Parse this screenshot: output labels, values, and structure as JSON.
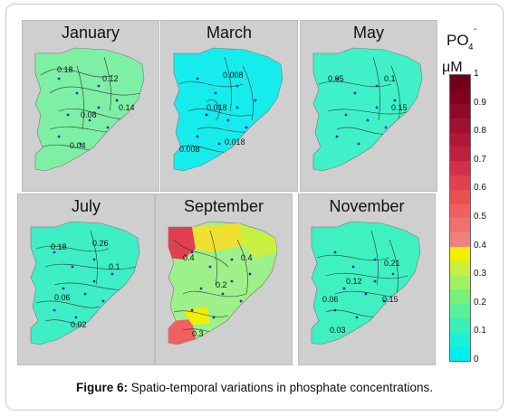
{
  "figure": {
    "caption_label": "Figure 6:",
    "caption_text": " Spatio-temporal variations in phosphate concentrations."
  },
  "panels": [
    {
      "id": "january",
      "title": "January",
      "contour_labels": [
        "0.18",
        "0.12",
        "0.08",
        "0.14",
        "0.04"
      ],
      "fill": "#7ef0a6"
    },
    {
      "id": "march",
      "title": "March",
      "contour_labels": [
        "0.008",
        "0.018",
        "0.018",
        "0.008"
      ],
      "fill": "#16ecec"
    },
    {
      "id": "may",
      "title": "May",
      "contour_labels": [
        "0.05",
        "0.1",
        "0.15"
      ],
      "fill": "#3ff0c8"
    },
    {
      "id": "july",
      "title": "July",
      "contour_labels": [
        "0.18",
        "0.26",
        "0.1",
        "0.06",
        "0.02"
      ],
      "fill": "#3eeec4"
    },
    {
      "id": "september",
      "title": "September",
      "contour_labels": [
        "0.4",
        "0.4",
        "0.2",
        "0.3"
      ],
      "fill": "#9ef08a"
    },
    {
      "id": "november",
      "title": "November",
      "contour_labels": [
        "0.21",
        "0.12",
        "0.06",
        "0.15",
        "0.03"
      ],
      "fill": "#3ff0c0"
    }
  ],
  "legend": {
    "title": "PO",
    "subscript": "4",
    "superscript": "-",
    "unit": "μM",
    "ticks": [
      "1",
      "0.9",
      "0.8",
      "0.7",
      "0.6",
      "0.5",
      "0.4",
      "0.3",
      "0.2",
      "0.1",
      "0"
    ],
    "min": 0,
    "max": 1,
    "step_colors": [
      "#00f0f0",
      "#18f0d8",
      "#38f0b8",
      "#58f098",
      "#78f078",
      "#a0f060",
      "#c8f040",
      "#f0f000",
      "#f08080",
      "#f07070",
      "#f06060",
      "#e85050",
      "#e04050",
      "#d03048",
      "#c02040",
      "#b01838",
      "#a01030",
      "#900828",
      "#800020",
      "#700018"
    ]
  }
}
